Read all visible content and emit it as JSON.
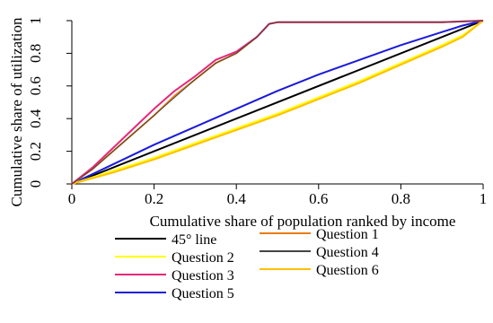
{
  "chart_data": {
    "type": "line",
    "title": "",
    "xlabel": "Cumulative share of population ranked by income",
    "ylabel": "Cumulative share of utilization",
    "xlim": [
      0,
      1
    ],
    "ylim": [
      0,
      1
    ],
    "xticks": [
      0,
      0.2,
      0.4,
      0.6,
      0.8,
      1
    ],
    "xtick_labels": [
      "0",
      "0.2",
      "0.4",
      "0.6",
      "0.8",
      "1"
    ],
    "yticks": [
      0,
      0.2,
      0.4,
      0.6,
      0.8,
      1
    ],
    "ytick_labels": [
      "0",
      "0.2",
      "0.4",
      "0.6",
      "0.8",
      "1"
    ],
    "grid": false,
    "legend_position": "bottom",
    "series": [
      {
        "name": "45° line",
        "color": "#000000",
        "x": [
          0,
          1
        ],
        "y": [
          0,
          1
        ]
      },
      {
        "name": "Question 1",
        "color": "#e87d12",
        "x": [
          0,
          0.05,
          0.1,
          0.15,
          0.2,
          0.25,
          0.3,
          0.35,
          0.4,
          0.45,
          0.48,
          0.5,
          0.6,
          0.8,
          0.9,
          1
        ],
        "y": [
          0,
          0.09,
          0.2,
          0.31,
          0.42,
          0.54,
          0.64,
          0.74,
          0.8,
          0.9,
          0.98,
          0.99,
          0.99,
          0.99,
          0.99,
          1
        ]
      },
      {
        "name": "Question 2",
        "color": "#ffff00",
        "x": [
          0,
          0.1,
          0.2,
          0.3,
          0.4,
          0.5,
          0.6,
          0.7,
          0.8,
          0.9,
          0.95,
          1
        ],
        "y": [
          0,
          0.08,
          0.16,
          0.25,
          0.34,
          0.43,
          0.53,
          0.63,
          0.74,
          0.85,
          0.91,
          1
        ]
      },
      {
        "name": "Question 3",
        "color": "#e5287a",
        "x": [
          0,
          0.05,
          0.1,
          0.15,
          0.2,
          0.25,
          0.3,
          0.35,
          0.4,
          0.45,
          0.48,
          0.5,
          0.6,
          0.8,
          0.9,
          1
        ],
        "y": [
          0,
          0.1,
          0.22,
          0.34,
          0.46,
          0.57,
          0.66,
          0.76,
          0.81,
          0.9,
          0.98,
          0.99,
          0.99,
          0.99,
          0.99,
          1
        ]
      },
      {
        "name": "Question 4",
        "color": "#444444",
        "x": [
          0,
          0.05,
          0.1,
          0.15,
          0.2,
          0.25,
          0.3,
          0.35,
          0.4,
          0.45,
          0.48,
          0.5,
          0.6,
          0.8,
          0.9,
          1
        ],
        "y": [
          0,
          0.09,
          0.2,
          0.31,
          0.42,
          0.53,
          0.64,
          0.74,
          0.8,
          0.9,
          0.98,
          0.99,
          0.99,
          0.99,
          0.99,
          1
        ]
      },
      {
        "name": "Question 5",
        "color": "#1a1adb",
        "x": [
          0,
          0.1,
          0.2,
          0.3,
          0.4,
          0.5,
          0.6,
          0.7,
          0.8,
          0.9,
          0.95,
          1
        ],
        "y": [
          0,
          0.12,
          0.24,
          0.35,
          0.46,
          0.57,
          0.67,
          0.76,
          0.85,
          0.93,
          0.97,
          1
        ]
      },
      {
        "name": "Question 6",
        "color": "#ffbf00",
        "x": [
          0,
          0.1,
          0.2,
          0.3,
          0.4,
          0.5,
          0.6,
          0.7,
          0.8,
          0.9,
          0.95,
          1
        ],
        "y": [
          0,
          0.07,
          0.15,
          0.24,
          0.33,
          0.42,
          0.52,
          0.62,
          0.73,
          0.84,
          0.9,
          1
        ]
      }
    ]
  }
}
